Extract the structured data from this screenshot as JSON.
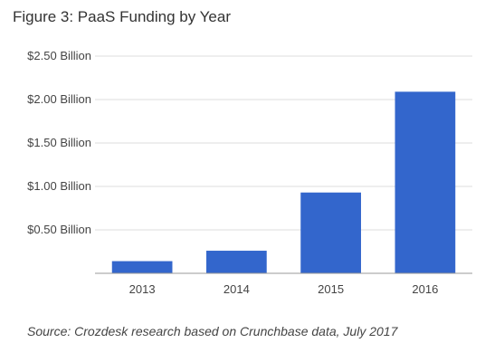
{
  "chart_data": {
    "type": "bar",
    "title": "Figure 3: PaaS Funding by Year",
    "xlabel": "",
    "ylabel": "",
    "categories": [
      "2013",
      "2014",
      "2015",
      "2016"
    ],
    "values": [
      0.14,
      0.26,
      0.93,
      2.09
    ],
    "ylim": [
      0,
      2.5
    ],
    "yticks": [
      0.5,
      1.0,
      1.5,
      2.0,
      2.5
    ],
    "ytick_labels": [
      "$0.50 Billion",
      "$1.00 Billion",
      "$1.50 Billion",
      "$2.00 Billion",
      "$2.50 Billion"
    ],
    "grid": true,
    "legend": "none",
    "bar_color": "#3366cc",
    "grid_color": "#dddddd",
    "axis_color": "#999999"
  },
  "source": "Source: Crozdesk research based on Crunchbase data, July 2017"
}
